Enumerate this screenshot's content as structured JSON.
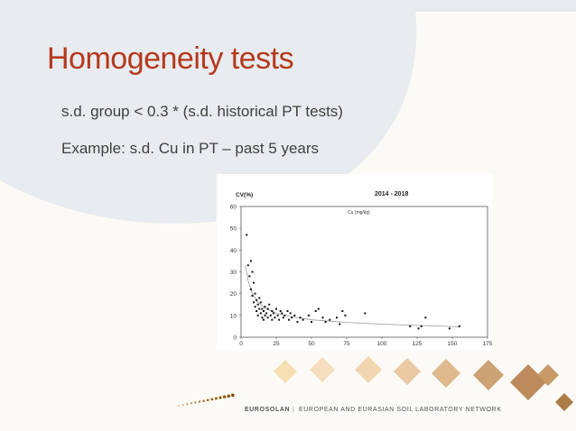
{
  "slide": {
    "title": "Homogeneity tests",
    "bullets": [
      "s.d. group < 0.3 * (s.d. historical PT tests)",
      "Example: s.d. Cu in PT – past 5 years"
    ]
  },
  "colors": {
    "title": "#b5391c",
    "text": "#404040",
    "diamond_light": "#f6d9a8",
    "diamond_dark": "#a9743c"
  },
  "chart_data": {
    "type": "scatter",
    "title": "2014 - 2018",
    "ylabel": "CV(%)",
    "xlabel": "",
    "legend": "Cu (mg/kg)",
    "xlim": [
      0,
      175
    ],
    "ylim": [
      0,
      60
    ],
    "xticks": [
      "0",
      "25",
      "50",
      "75",
      "100",
      "125",
      "150",
      "175"
    ],
    "yticks": [
      "0",
      "10",
      "20",
      "30",
      "40",
      "50",
      "60"
    ],
    "points": [
      [
        4,
        47
      ],
      [
        5,
        33
      ],
      [
        6,
        28
      ],
      [
        7,
        35
      ],
      [
        7,
        22
      ],
      [
        8,
        30
      ],
      [
        8,
        19
      ],
      [
        9,
        25
      ],
      [
        9,
        16
      ],
      [
        10,
        20
      ],
      [
        10,
        14
      ],
      [
        11,
        17
      ],
      [
        11,
        12
      ],
      [
        12,
        15
      ],
      [
        12,
        10
      ],
      [
        13,
        18
      ],
      [
        13,
        13
      ],
      [
        14,
        11
      ],
      [
        14,
        16
      ],
      [
        15,
        9
      ],
      [
        15,
        13
      ],
      [
        16,
        12
      ],
      [
        16,
        8
      ],
      [
        17,
        14
      ],
      [
        17,
        10
      ],
      [
        18,
        11
      ],
      [
        19,
        9
      ],
      [
        19,
        13
      ],
      [
        20,
        15
      ],
      [
        21,
        10
      ],
      [
        22,
        12
      ],
      [
        22,
        8
      ],
      [
        23,
        11
      ],
      [
        24,
        9
      ],
      [
        25,
        13
      ],
      [
        26,
        10
      ],
      [
        27,
        8
      ],
      [
        28,
        12
      ],
      [
        29,
        11
      ],
      [
        30,
        9
      ],
      [
        31,
        10
      ],
      [
        33,
        12
      ],
      [
        34,
        8
      ],
      [
        35,
        11
      ],
      [
        36,
        9
      ],
      [
        38,
        10
      ],
      [
        40,
        7
      ],
      [
        42,
        9
      ],
      [
        44,
        8
      ],
      [
        48,
        10
      ],
      [
        50,
        7
      ],
      [
        53,
        12
      ],
      [
        55,
        13
      ],
      [
        58,
        9
      ],
      [
        60,
        7
      ],
      [
        63,
        8
      ],
      [
        68,
        9
      ],
      [
        70,
        6
      ],
      [
        72,
        12
      ],
      [
        74,
        10
      ],
      [
        88,
        11
      ],
      [
        120,
        5
      ],
      [
        126,
        4
      ],
      [
        128,
        5
      ],
      [
        131,
        9
      ],
      [
        148,
        4
      ],
      [
        155,
        5
      ]
    ],
    "trend": [
      [
        3,
        33
      ],
      [
        5,
        26
      ],
      [
        8,
        20
      ],
      [
        12,
        16
      ],
      [
        18,
        13
      ],
      [
        25,
        11
      ],
      [
        35,
        9.5
      ],
      [
        50,
        8
      ],
      [
        75,
        6.8
      ],
      [
        100,
        6
      ],
      [
        125,
        5.4
      ],
      [
        155,
        4.8
      ]
    ]
  },
  "footer": {
    "brand": "EUROSOLAN",
    "separator": "|",
    "network": "EUROPEAN AND EURASIAN SOIL LABORATORY NETWORK"
  }
}
